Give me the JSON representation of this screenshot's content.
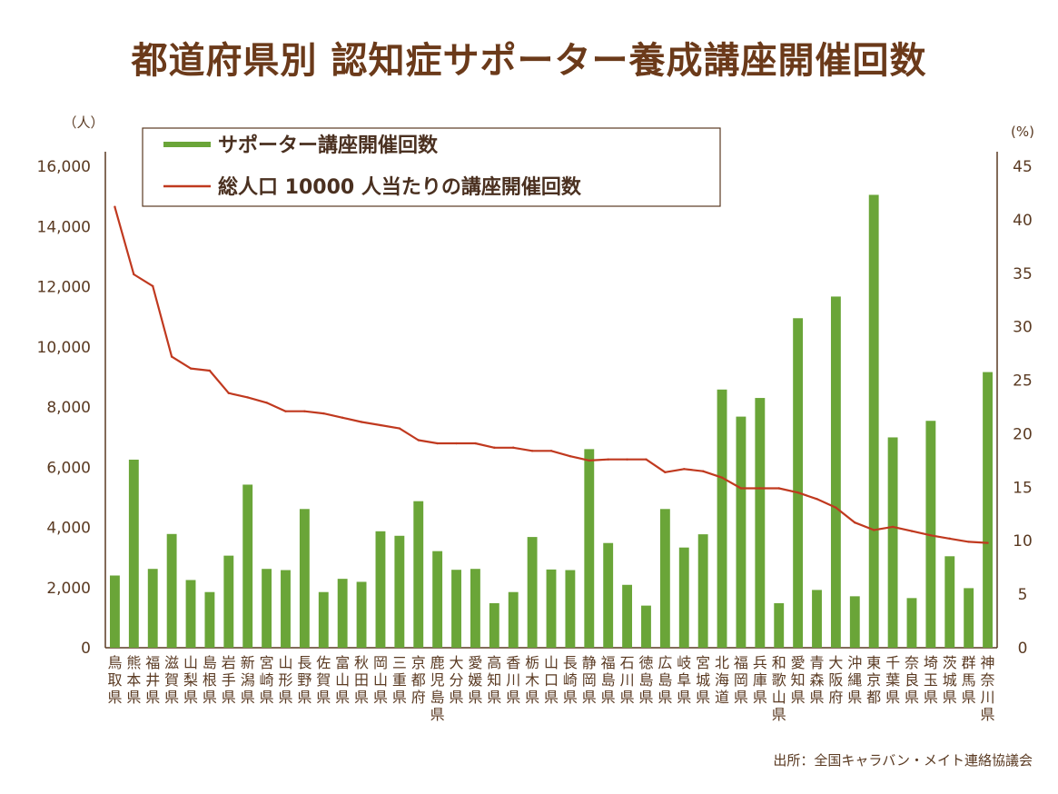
{
  "title": "都道府県別 認知症サポーター養成講座開催回数",
  "source": "出所：全国キャラバン・メイト連絡協議会",
  "legend": {
    "bar": "サポーター講座開催回数",
    "line": "総人口 10000 人当たりの講座開催回数"
  },
  "colors": {
    "bar": "#6aa538",
    "line": "#c0391f",
    "axis": "#5a3a22",
    "title": "#6b3a1a"
  },
  "chart_data": {
    "type": "bar",
    "title": "都道府県別 認知症サポーター養成講座開催回数",
    "y_left": {
      "unit": "（人）",
      "ylim": [
        0,
        16000
      ],
      "ticks": [
        "0",
        "2,000",
        "4,000",
        "6,000",
        "8,000",
        "10,000",
        "12,000",
        "14,000",
        "16,000"
      ]
    },
    "y_right": {
      "unit": "(%)",
      "ylim": [
        0,
        45
      ],
      "ticks": [
        "0",
        "5",
        "10",
        "15",
        "20",
        "25",
        "30",
        "35",
        "40",
        "45"
      ]
    },
    "grid": false,
    "legend_position": "top-left",
    "categories": [
      "鳥取県",
      "熊本県",
      "福井県",
      "滋賀県",
      "山梨県",
      "島根県",
      "岩手県",
      "新潟県",
      "宮崎県",
      "山形県",
      "長野県",
      "佐賀県",
      "富山県",
      "秋田県",
      "岡山県",
      "三重県",
      "京都府",
      "鹿児島県",
      "大分県",
      "愛媛県",
      "高知県",
      "香川県",
      "栃木県",
      "山口県",
      "長崎県",
      "静岡県",
      "福島県",
      "石川県",
      "徳島県",
      "広島県",
      "岐阜県",
      "宮城県",
      "北海道",
      "福岡県",
      "兵庫県",
      "和歌山県",
      "愛知県",
      "青森県",
      "大阪府",
      "沖縄県",
      "東京都",
      "千葉県",
      "奈良県",
      "埼玉県",
      "茨城県",
      "群馬県",
      "神奈川県"
    ],
    "series": [
      {
        "name": "サポーター講座開催回数",
        "type": "bar",
        "axis": "left",
        "values": [
          2400,
          6250,
          2620,
          3780,
          2250,
          1850,
          3060,
          5420,
          2620,
          2580,
          4610,
          1850,
          2290,
          2190,
          3870,
          3720,
          4870,
          3210,
          2590,
          2620,
          1480,
          1850,
          3680,
          2600,
          2580,
          6600,
          3480,
          2090,
          1400,
          4610,
          3330,
          3770,
          8580,
          7680,
          8300,
          1480,
          10950,
          1920,
          11670,
          1710,
          15050,
          6990,
          1650,
          7540,
          3040,
          1980,
          9160
        ]
      },
      {
        "name": "総人口 10000 人当たりの講座開催回数",
        "type": "line",
        "axis": "right",
        "values": [
          41.2,
          34.9,
          33.8,
          27.2,
          26.1,
          25.9,
          23.8,
          23.4,
          22.9,
          22.1,
          22.1,
          21.9,
          21.5,
          21.1,
          20.8,
          20.5,
          19.4,
          19.1,
          19.1,
          19.1,
          18.7,
          18.7,
          18.4,
          18.4,
          17.9,
          17.5,
          17.6,
          17.6,
          17.6,
          16.4,
          16.7,
          16.5,
          15.9,
          14.9,
          14.9,
          14.9,
          14.5,
          13.9,
          13.1,
          11.7,
          11.0,
          11.3,
          10.9,
          10.5,
          10.2,
          9.9,
          9.8
        ]
      }
    ]
  }
}
